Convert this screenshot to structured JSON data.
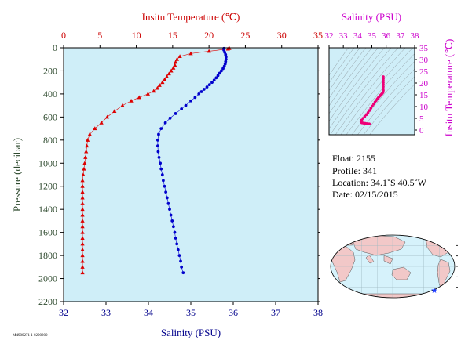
{
  "figure": {
    "footer_code": "M4900271 1 0200200"
  },
  "chart_data": [
    {
      "type": "scatter",
      "title": "",
      "y_axis": {
        "label": "Pressure (decibar)",
        "range": [
          2200,
          0
        ],
        "ticks": [
          0,
          200,
          400,
          600,
          800,
          1000,
          1200,
          1400,
          1600,
          1800,
          2000,
          2200
        ],
        "inverted": true,
        "color": "#2e4a2e"
      },
      "top_axis": {
        "label": "Insitu Temperature (℃)",
        "range": [
          0,
          35
        ],
        "ticks": [
          0,
          5,
          10,
          15,
          20,
          25,
          30,
          35
        ],
        "color": "#cc0000"
      },
      "bottom_axis": {
        "label": "Salinity (PSU)",
        "range": [
          32,
          38
        ],
        "ticks": [
          32,
          33,
          34,
          35,
          36,
          37,
          38
        ],
        "color": "#00008b"
      },
      "background": "#cfeef8",
      "series": [
        {
          "axis": "temperature",
          "color": "#dd0000",
          "marker": "triangle",
          "points": [
            [
              22.8,
              5
            ],
            [
              22.6,
              10
            ],
            [
              20.0,
              30
            ],
            [
              17.5,
              50
            ],
            [
              16.0,
              75
            ],
            [
              15.6,
              100
            ],
            [
              15.4,
              125
            ],
            [
              15.3,
              150
            ],
            [
              15.1,
              175
            ],
            [
              14.8,
              200
            ],
            [
              14.5,
              225
            ],
            [
              14.2,
              250
            ],
            [
              13.9,
              275
            ],
            [
              13.6,
              300
            ],
            [
              13.2,
              325
            ],
            [
              12.9,
              350
            ],
            [
              12.4,
              375
            ],
            [
              11.6,
              400
            ],
            [
              10.4,
              430
            ],
            [
              9.3,
              460
            ],
            [
              8.1,
              500
            ],
            [
              7.0,
              550
            ],
            [
              6.0,
              600
            ],
            [
              5.2,
              650
            ],
            [
              4.3,
              700
            ],
            [
              3.6,
              750
            ],
            [
              3.3,
              800
            ],
            [
              3.2,
              850
            ],
            [
              3.1,
              900
            ],
            [
              3.0,
              950
            ],
            [
              2.9,
              1000
            ],
            [
              2.8,
              1050
            ],
            [
              2.7,
              1100
            ],
            [
              2.6,
              1150
            ],
            [
              2.6,
              1200
            ],
            [
              2.6,
              1250
            ],
            [
              2.6,
              1300
            ],
            [
              2.6,
              1350
            ],
            [
              2.6,
              1400
            ],
            [
              2.6,
              1450
            ],
            [
              2.6,
              1500
            ],
            [
              2.6,
              1550
            ],
            [
              2.6,
              1600
            ],
            [
              2.6,
              1650
            ],
            [
              2.6,
              1700
            ],
            [
              2.6,
              1750
            ],
            [
              2.6,
              1800
            ],
            [
              2.6,
              1850
            ],
            [
              2.6,
              1900
            ],
            [
              2.6,
              1950
            ]
          ]
        },
        {
          "axis": "salinity",
          "color": "#0000cc",
          "marker": "circle",
          "points": [
            [
              35.78,
              5
            ],
            [
              35.78,
              20
            ],
            [
              35.8,
              40
            ],
            [
              35.82,
              60
            ],
            [
              35.83,
              80
            ],
            [
              35.83,
              100
            ],
            [
              35.82,
              120
            ],
            [
              35.81,
              140
            ],
            [
              35.79,
              160
            ],
            [
              35.76,
              180
            ],
            [
              35.72,
              200
            ],
            [
              35.68,
              220
            ],
            [
              35.64,
              240
            ],
            [
              35.6,
              260
            ],
            [
              35.55,
              280
            ],
            [
              35.5,
              300
            ],
            [
              35.44,
              320
            ],
            [
              35.38,
              340
            ],
            [
              35.31,
              360
            ],
            [
              35.25,
              380
            ],
            [
              35.19,
              400
            ],
            [
              35.1,
              430
            ],
            [
              35.0,
              460
            ],
            [
              34.88,
              500
            ],
            [
              34.78,
              530
            ],
            [
              34.64,
              570
            ],
            [
              34.51,
              610
            ],
            [
              34.4,
              650
            ],
            [
              34.3,
              700
            ],
            [
              34.24,
              750
            ],
            [
              34.22,
              800
            ],
            [
              34.22,
              850
            ],
            [
              34.23,
              900
            ],
            [
              34.25,
              950
            ],
            [
              34.28,
              1000
            ],
            [
              34.3,
              1050
            ],
            [
              34.33,
              1100
            ],
            [
              34.35,
              1150
            ],
            [
              34.38,
              1200
            ],
            [
              34.41,
              1250
            ],
            [
              34.44,
              1300
            ],
            [
              34.47,
              1350
            ],
            [
              34.5,
              1400
            ],
            [
              34.53,
              1450
            ],
            [
              34.56,
              1500
            ],
            [
              34.59,
              1550
            ],
            [
              34.62,
              1600
            ],
            [
              34.64,
              1650
            ],
            [
              34.67,
              1700
            ],
            [
              34.7,
              1750
            ],
            [
              34.73,
              1800
            ],
            [
              34.76,
              1850
            ],
            [
              34.78,
              1900
            ],
            [
              34.82,
              1950
            ]
          ]
        }
      ]
    },
    {
      "type": "scatter",
      "title": "",
      "top_axis": {
        "label": "Salinity (PSU)",
        "range": [
          32,
          38
        ],
        "ticks": [
          32,
          33,
          34,
          35,
          36,
          37,
          38
        ],
        "color": "#cc00cc"
      },
      "right_axis": {
        "label": "Insitu Temperature (℃)",
        "range": [
          -2,
          35
        ],
        "ticks": [
          0,
          5,
          10,
          15,
          20,
          25,
          30,
          35
        ],
        "color": "#cc00cc"
      },
      "background": "#cfeef8",
      "isopycnals": true,
      "series": [
        {
          "color": "#ee0077",
          "marker": "circle",
          "points": [
            [
              35.8,
              22.7
            ],
            [
              35.8,
              21.8
            ],
            [
              35.8,
              21.0
            ],
            [
              35.8,
              20.2
            ],
            [
              35.8,
              19.4
            ],
            [
              35.8,
              18.4
            ],
            [
              35.8,
              17.5
            ],
            [
              35.8,
              16.8
            ],
            [
              35.79,
              16.2
            ],
            [
              35.75,
              15.8
            ],
            [
              35.7,
              15.4
            ],
            [
              35.66,
              15.1
            ],
            [
              35.61,
              14.8
            ],
            [
              35.56,
              14.5
            ],
            [
              35.5,
              14.1
            ],
            [
              35.44,
              13.7
            ],
            [
              35.38,
              13.2
            ],
            [
              35.3,
              12.6
            ],
            [
              35.22,
              11.9
            ],
            [
              35.13,
              11.1
            ],
            [
              35.03,
              10.2
            ],
            [
              34.93,
              9.3
            ],
            [
              34.83,
              8.3
            ],
            [
              34.73,
              7.4
            ],
            [
              34.62,
              6.6
            ],
            [
              34.5,
              5.8
            ],
            [
              34.38,
              5.0
            ],
            [
              34.28,
              4.2
            ],
            [
              34.24,
              3.6
            ],
            [
              34.25,
              3.3
            ],
            [
              34.3,
              3.1
            ],
            [
              34.38,
              3.0
            ],
            [
              34.46,
              2.9
            ],
            [
              34.55,
              2.8
            ],
            [
              34.65,
              2.7
            ],
            [
              34.75,
              2.6
            ],
            [
              34.82,
              2.6
            ]
          ]
        }
      ]
    }
  ],
  "info": {
    "float": "Float:  2155",
    "profile": "Profile:  341",
    "location": "Location:  34.1˚S  40.5˚W",
    "date": "Date:  02/15/2015"
  },
  "map": {
    "ocean_color": "#d6f2fb",
    "land_color": "#f2c8c8",
    "marker_color": "#1e3cff",
    "float_position": {
      "lat": -34.1,
      "lon": -40.5
    }
  }
}
